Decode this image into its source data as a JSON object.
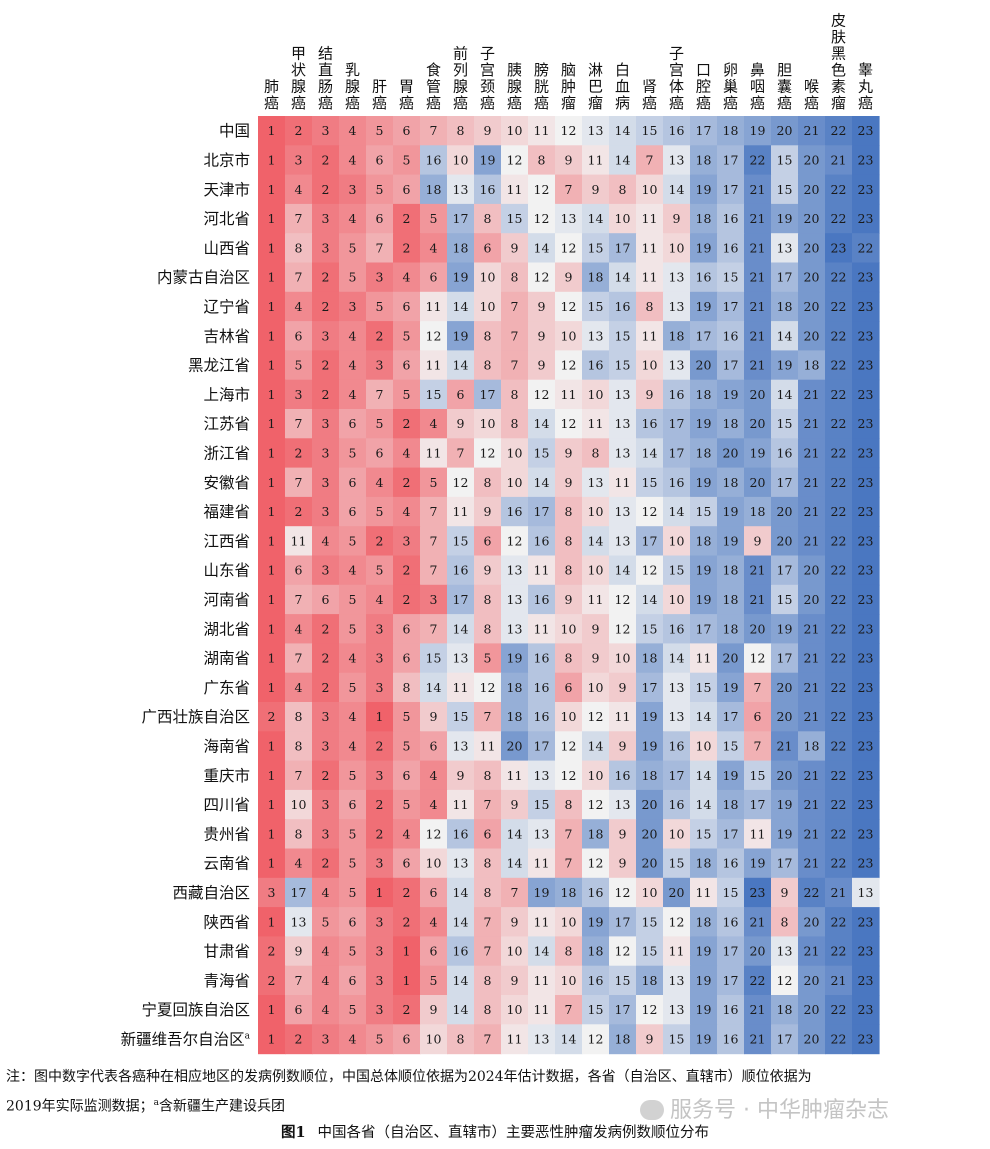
{
  "chart_data": {
    "type": "heatmap",
    "cancers": [
      "肺癌",
      "甲状腺癌",
      "结直肠癌",
      "乳腺癌",
      "肝癌",
      "胃癌",
      "食管癌",
      "前列腺癌",
      "子宫颈癌",
      "胰腺癌",
      "膀胱癌",
      "脑肿瘤",
      "淋巴瘤",
      "白血病",
      "肾癌",
      "子宫体癌",
      "口腔癌",
      "卵巢癌",
      "鼻咽癌",
      "胆囊癌",
      "喉癌",
      "皮肤黑色素瘤",
      "睾丸癌"
    ],
    "regions": [
      {
        "name": "中国",
        "sup": "",
        "ranks": [
          1,
          2,
          3,
          4,
          5,
          6,
          7,
          8,
          9,
          10,
          11,
          12,
          13,
          14,
          15,
          16,
          17,
          18,
          19,
          20,
          21,
          22,
          23
        ]
      },
      {
        "name": "北京市",
        "sup": "",
        "ranks": [
          1,
          3,
          2,
          4,
          6,
          5,
          16,
          10,
          19,
          12,
          8,
          9,
          11,
          14,
          7,
          13,
          18,
          17,
          22,
          15,
          20,
          21,
          23
        ]
      },
      {
        "name": "天津市",
        "sup": "",
        "ranks": [
          1,
          4,
          2,
          3,
          5,
          6,
          18,
          13,
          16,
          11,
          12,
          7,
          9,
          8,
          10,
          14,
          19,
          17,
          21,
          15,
          20,
          22,
          23
        ]
      },
      {
        "name": "河北省",
        "sup": "",
        "ranks": [
          1,
          7,
          3,
          4,
          6,
          2,
          5,
          17,
          8,
          15,
          12,
          13,
          14,
          10,
          11,
          9,
          18,
          16,
          21,
          19,
          20,
          22,
          23
        ]
      },
      {
        "name": "山西省",
        "sup": "",
        "ranks": [
          1,
          8,
          3,
          5,
          7,
          2,
          4,
          18,
          6,
          9,
          14,
          12,
          15,
          17,
          11,
          10,
          19,
          16,
          21,
          13,
          20,
          23,
          22
        ]
      },
      {
        "name": "内蒙古自治区",
        "sup": "",
        "ranks": [
          1,
          7,
          2,
          5,
          3,
          4,
          6,
          19,
          10,
          8,
          12,
          9,
          18,
          14,
          11,
          13,
          16,
          15,
          21,
          17,
          20,
          22,
          23
        ]
      },
      {
        "name": "辽宁省",
        "sup": "",
        "ranks": [
          1,
          4,
          2,
          3,
          5,
          6,
          11,
          14,
          10,
          7,
          9,
          12,
          15,
          16,
          8,
          13,
          19,
          17,
          21,
          18,
          20,
          22,
          23
        ]
      },
      {
        "name": "吉林省",
        "sup": "",
        "ranks": [
          1,
          6,
          3,
          4,
          2,
          5,
          12,
          19,
          8,
          7,
          9,
          10,
          13,
          15,
          11,
          18,
          17,
          16,
          21,
          14,
          20,
          22,
          23
        ]
      },
      {
        "name": "黑龙江省",
        "sup": "",
        "ranks": [
          1,
          5,
          2,
          4,
          3,
          6,
          11,
          14,
          8,
          7,
          9,
          12,
          16,
          15,
          10,
          13,
          20,
          17,
          21,
          19,
          18,
          22,
          23
        ]
      },
      {
        "name": "上海市",
        "sup": "",
        "ranks": [
          1,
          3,
          2,
          4,
          7,
          5,
          15,
          6,
          17,
          8,
          12,
          11,
          10,
          13,
          9,
          16,
          18,
          19,
          20,
          14,
          21,
          22,
          23
        ]
      },
      {
        "name": "江苏省",
        "sup": "",
        "ranks": [
          1,
          7,
          3,
          6,
          5,
          2,
          4,
          9,
          10,
          8,
          14,
          12,
          11,
          13,
          16,
          17,
          19,
          18,
          20,
          15,
          21,
          22,
          23
        ]
      },
      {
        "name": "浙江省",
        "sup": "",
        "ranks": [
          1,
          2,
          3,
          5,
          6,
          4,
          11,
          7,
          12,
          10,
          15,
          9,
          8,
          13,
          14,
          17,
          18,
          20,
          19,
          16,
          21,
          22,
          23
        ]
      },
      {
        "name": "安徽省",
        "sup": "",
        "ranks": [
          1,
          7,
          3,
          6,
          4,
          2,
          5,
          12,
          8,
          10,
          14,
          9,
          13,
          11,
          15,
          16,
          19,
          18,
          20,
          17,
          21,
          22,
          23
        ]
      },
      {
        "name": "福建省",
        "sup": "",
        "ranks": [
          1,
          2,
          3,
          6,
          5,
          4,
          7,
          11,
          9,
          16,
          17,
          8,
          10,
          13,
          12,
          14,
          15,
          19,
          18,
          20,
          21,
          22,
          23
        ]
      },
      {
        "name": "江西省",
        "sup": "",
        "ranks": [
          1,
          11,
          4,
          5,
          2,
          3,
          7,
          15,
          6,
          12,
          16,
          8,
          14,
          13,
          17,
          10,
          18,
          19,
          9,
          20,
          21,
          22,
          23
        ]
      },
      {
        "name": "山东省",
        "sup": "",
        "ranks": [
          1,
          6,
          3,
          4,
          5,
          2,
          7,
          16,
          9,
          13,
          11,
          8,
          10,
          14,
          12,
          15,
          19,
          18,
          21,
          17,
          20,
          22,
          23
        ]
      },
      {
        "name": "河南省",
        "sup": "",
        "ranks": [
          1,
          7,
          6,
          5,
          4,
          2,
          3,
          17,
          8,
          13,
          16,
          9,
          11,
          12,
          14,
          10,
          19,
          18,
          21,
          15,
          20,
          22,
          23
        ]
      },
      {
        "name": "湖北省",
        "sup": "",
        "ranks": [
          1,
          4,
          2,
          5,
          3,
          6,
          7,
          14,
          8,
          13,
          11,
          10,
          9,
          12,
          15,
          16,
          17,
          18,
          20,
          19,
          21,
          22,
          23
        ]
      },
      {
        "name": "湖南省",
        "sup": "",
        "ranks": [
          1,
          7,
          2,
          4,
          3,
          6,
          15,
          13,
          5,
          19,
          16,
          8,
          9,
          10,
          18,
          14,
          11,
          20,
          12,
          17,
          21,
          22,
          23
        ]
      },
      {
        "name": "广东省",
        "sup": "",
        "ranks": [
          1,
          4,
          2,
          5,
          3,
          8,
          14,
          11,
          12,
          18,
          16,
          6,
          10,
          9,
          17,
          13,
          15,
          19,
          7,
          20,
          21,
          22,
          23
        ]
      },
      {
        "name": "广西壮族自治区",
        "sup": "",
        "ranks": [
          2,
          8,
          3,
          4,
          1,
          5,
          9,
          15,
          7,
          18,
          16,
          10,
          12,
          11,
          19,
          13,
          14,
          17,
          6,
          20,
          21,
          22,
          23
        ]
      },
      {
        "name": "海南省",
        "sup": "",
        "ranks": [
          1,
          8,
          3,
          4,
          2,
          5,
          6,
          13,
          11,
          20,
          17,
          12,
          14,
          9,
          19,
          16,
          10,
          15,
          7,
          21,
          18,
          22,
          23
        ]
      },
      {
        "name": "重庆市",
        "sup": "",
        "ranks": [
          1,
          7,
          2,
          5,
          3,
          6,
          4,
          9,
          8,
          11,
          13,
          12,
          10,
          16,
          18,
          17,
          14,
          19,
          15,
          20,
          21,
          22,
          23
        ]
      },
      {
        "name": "四川省",
        "sup": "",
        "ranks": [
          1,
          10,
          3,
          6,
          2,
          5,
          4,
          11,
          7,
          9,
          15,
          8,
          12,
          13,
          20,
          16,
          14,
          18,
          17,
          19,
          21,
          22,
          23
        ]
      },
      {
        "name": "贵州省",
        "sup": "",
        "ranks": [
          1,
          8,
          3,
          5,
          2,
          4,
          12,
          16,
          6,
          14,
          13,
          7,
          18,
          9,
          20,
          10,
          15,
          17,
          11,
          19,
          21,
          22,
          23
        ]
      },
      {
        "name": "云南省",
        "sup": "",
        "ranks": [
          1,
          4,
          2,
          5,
          3,
          6,
          10,
          13,
          8,
          14,
          11,
          7,
          12,
          9,
          20,
          15,
          18,
          16,
          19,
          17,
          21,
          22,
          23
        ]
      },
      {
        "name": "西藏自治区",
        "sup": "",
        "ranks": [
          3,
          17,
          4,
          5,
          1,
          2,
          6,
          14,
          8,
          7,
          19,
          18,
          16,
          12,
          10,
          20,
          11,
          15,
          23,
          9,
          22,
          21,
          13
        ]
      },
      {
        "name": "陕西省",
        "sup": "",
        "ranks": [
          1,
          13,
          5,
          6,
          3,
          2,
          4,
          14,
          7,
          9,
          11,
          10,
          19,
          17,
          15,
          12,
          18,
          16,
          21,
          8,
          20,
          22,
          23
        ]
      },
      {
        "name": "甘肃省",
        "sup": "",
        "ranks": [
          2,
          9,
          4,
          5,
          3,
          1,
          6,
          16,
          7,
          10,
          14,
          8,
          18,
          12,
          15,
          11,
          19,
          17,
          20,
          13,
          21,
          22,
          23
        ]
      },
      {
        "name": "青海省",
        "sup": "",
        "ranks": [
          2,
          7,
          4,
          6,
          3,
          1,
          5,
          14,
          8,
          9,
          11,
          10,
          16,
          15,
          18,
          13,
          19,
          17,
          22,
          12,
          20,
          21,
          23
        ]
      },
      {
        "name": "宁夏回族自治区",
        "sup": "",
        "ranks": [
          1,
          6,
          4,
          5,
          3,
          2,
          9,
          14,
          8,
          10,
          11,
          7,
          15,
          17,
          12,
          13,
          19,
          16,
          21,
          18,
          20,
          22,
          23
        ]
      },
      {
        "name": "新疆维吾尔自治区",
        "sup": "a",
        "ranks": [
          1,
          2,
          3,
          4,
          5,
          6,
          10,
          8,
          7,
          11,
          13,
          14,
          12,
          18,
          9,
          15,
          19,
          16,
          21,
          17,
          20,
          22,
          23
        ]
      }
    ],
    "color_scale": {
      "low": "#f0626a",
      "mid": "#f2f2f2",
      "high": "#4a77c1",
      "min": 1,
      "max": 23
    }
  },
  "note": {
    "line1": "注：图中数字代表各癌种在相应地区的发病例数顺位，中国总体顺位依据为2024年估计数据，各省（自治区、直辖市）顺位依据为",
    "line2_pre": "2019年实际监测数据；",
    "line2_sup": "a",
    "line2_post": "含新疆生产建设兵团"
  },
  "caption": {
    "fig": "图1",
    "text": "中国各省（自治区、直辖市）主要恶性肿瘤发病例数顺位分布"
  },
  "watermark": {
    "text": "服务号 · 中华肿瘤杂志"
  }
}
